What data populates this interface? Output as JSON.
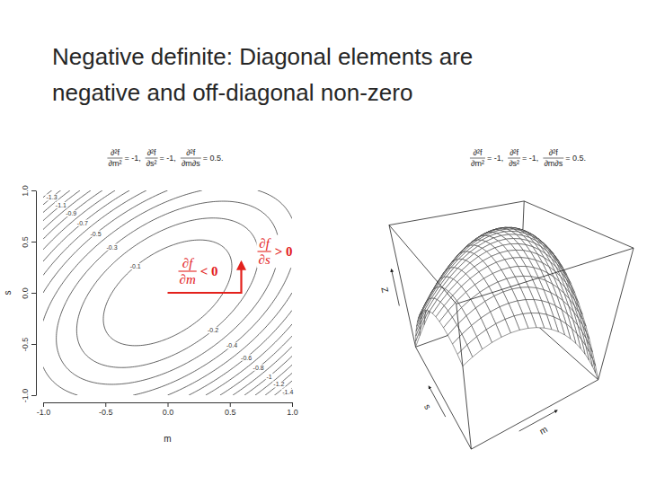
{
  "slide_title": [
    "Negative definite: Diagonal elements are",
    "negative and off-diagonal non-zero"
  ],
  "chart_data": [
    {
      "type": "contour",
      "title_terms": [
        {
          "numerator": "∂²f",
          "denominator": "∂m²",
          "value": -1,
          "label": "= -1,"
        },
        {
          "numerator": "∂²f",
          "denominator": "∂s²",
          "value": -1,
          "label": "= -1,"
        },
        {
          "numerator": "∂²f",
          "denominator": "∂m∂s",
          "value": 0.5,
          "label": "= 0.5."
        }
      ],
      "x_label": "m",
      "y_label": "s",
      "xlim": [
        -1,
        1
      ],
      "ylim": [
        -1,
        1
      ],
      "xticks": [
        {
          "value": -1,
          "label": "-1.0"
        },
        {
          "value": -0.5,
          "label": "-0.5"
        },
        {
          "value": 0,
          "label": "0.0"
        },
        {
          "value": 0.5,
          "label": "0.5"
        },
        {
          "value": 1,
          "label": "1.0"
        }
      ],
      "yticks": [
        {
          "value": -1,
          "label": "-1.0"
        },
        {
          "value": -0.5,
          "label": "-0.5"
        },
        {
          "value": 0,
          "label": "0.0"
        },
        {
          "value": 0.5,
          "label": "0.5"
        },
        {
          "value": 1,
          "label": "1.0"
        }
      ],
      "levels": [
        -0.1,
        -0.2,
        -0.3,
        -0.4,
        -0.5,
        -0.6,
        -0.7,
        -0.8,
        -0.9,
        -1,
        -1.1,
        -1.2,
        -1.3,
        -1.4
      ],
      "annotations": [
        {
          "numerator": "∂f",
          "denominator": "∂m",
          "label": "< 0",
          "color": "#e3211c"
        },
        {
          "numerator": "∂f",
          "denominator": "∂s",
          "label": "> 0",
          "color": "#e3211c"
        }
      ]
    },
    {
      "type": "surface",
      "title_terms": [
        {
          "numerator": "∂²f",
          "denominator": "∂m²",
          "value": -1,
          "label": "= -1,"
        },
        {
          "numerator": "∂²f",
          "denominator": "∂s²",
          "value": -1,
          "label": "= -1,"
        },
        {
          "numerator": "∂²f",
          "denominator": "∂m∂s",
          "value": 0.5,
          "label": "= 0.5."
        }
      ],
      "x_label": "m",
      "y_label": "s",
      "z_label": "Z",
      "xlim": [
        -1,
        1
      ],
      "ylim": [
        -1,
        1
      ],
      "zlim": [
        -1.5,
        0
      ],
      "tick_labels": false
    }
  ]
}
